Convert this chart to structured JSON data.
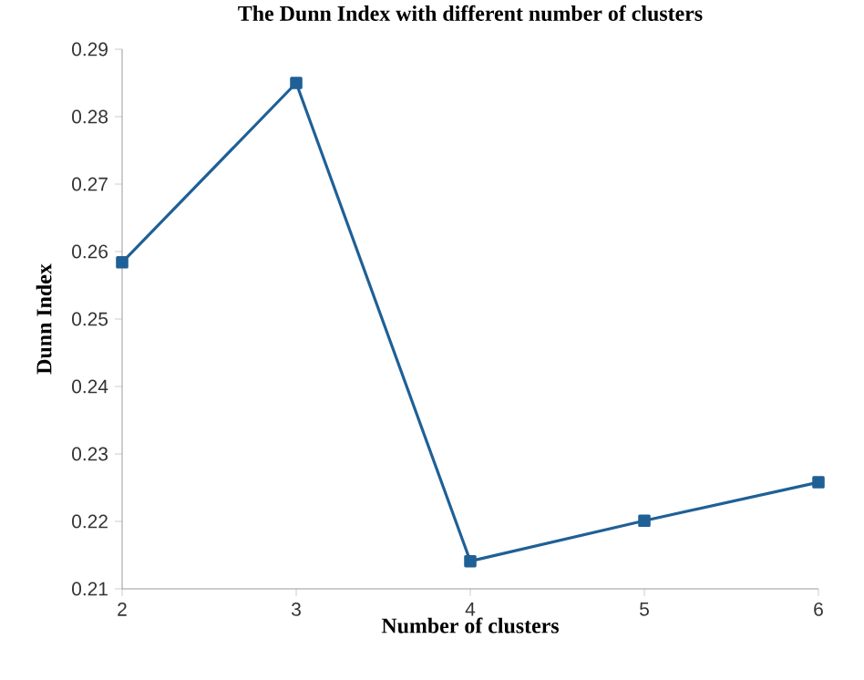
{
  "chart_data": {
    "type": "line",
    "title": "The Dunn Index with different number of clusters",
    "xlabel": "Number of clusters",
    "ylabel": "Dunn Index",
    "x": [
      2,
      3,
      4,
      5,
      6
    ],
    "series": [
      {
        "color": "#1f6096",
        "values": [
          0.2584,
          0.285,
          0.2141,
          0.2201,
          0.2258
        ]
      }
    ],
    "xlim": [
      2,
      6
    ],
    "xticks": [
      2,
      3,
      4,
      5,
      6
    ],
    "ylim": [
      0.21,
      0.29
    ],
    "yticks": [
      0.21,
      0.22,
      0.23,
      0.24,
      0.25,
      0.26,
      0.27,
      0.28,
      0.29
    ],
    "marker": "square",
    "line_style": "solid"
  }
}
